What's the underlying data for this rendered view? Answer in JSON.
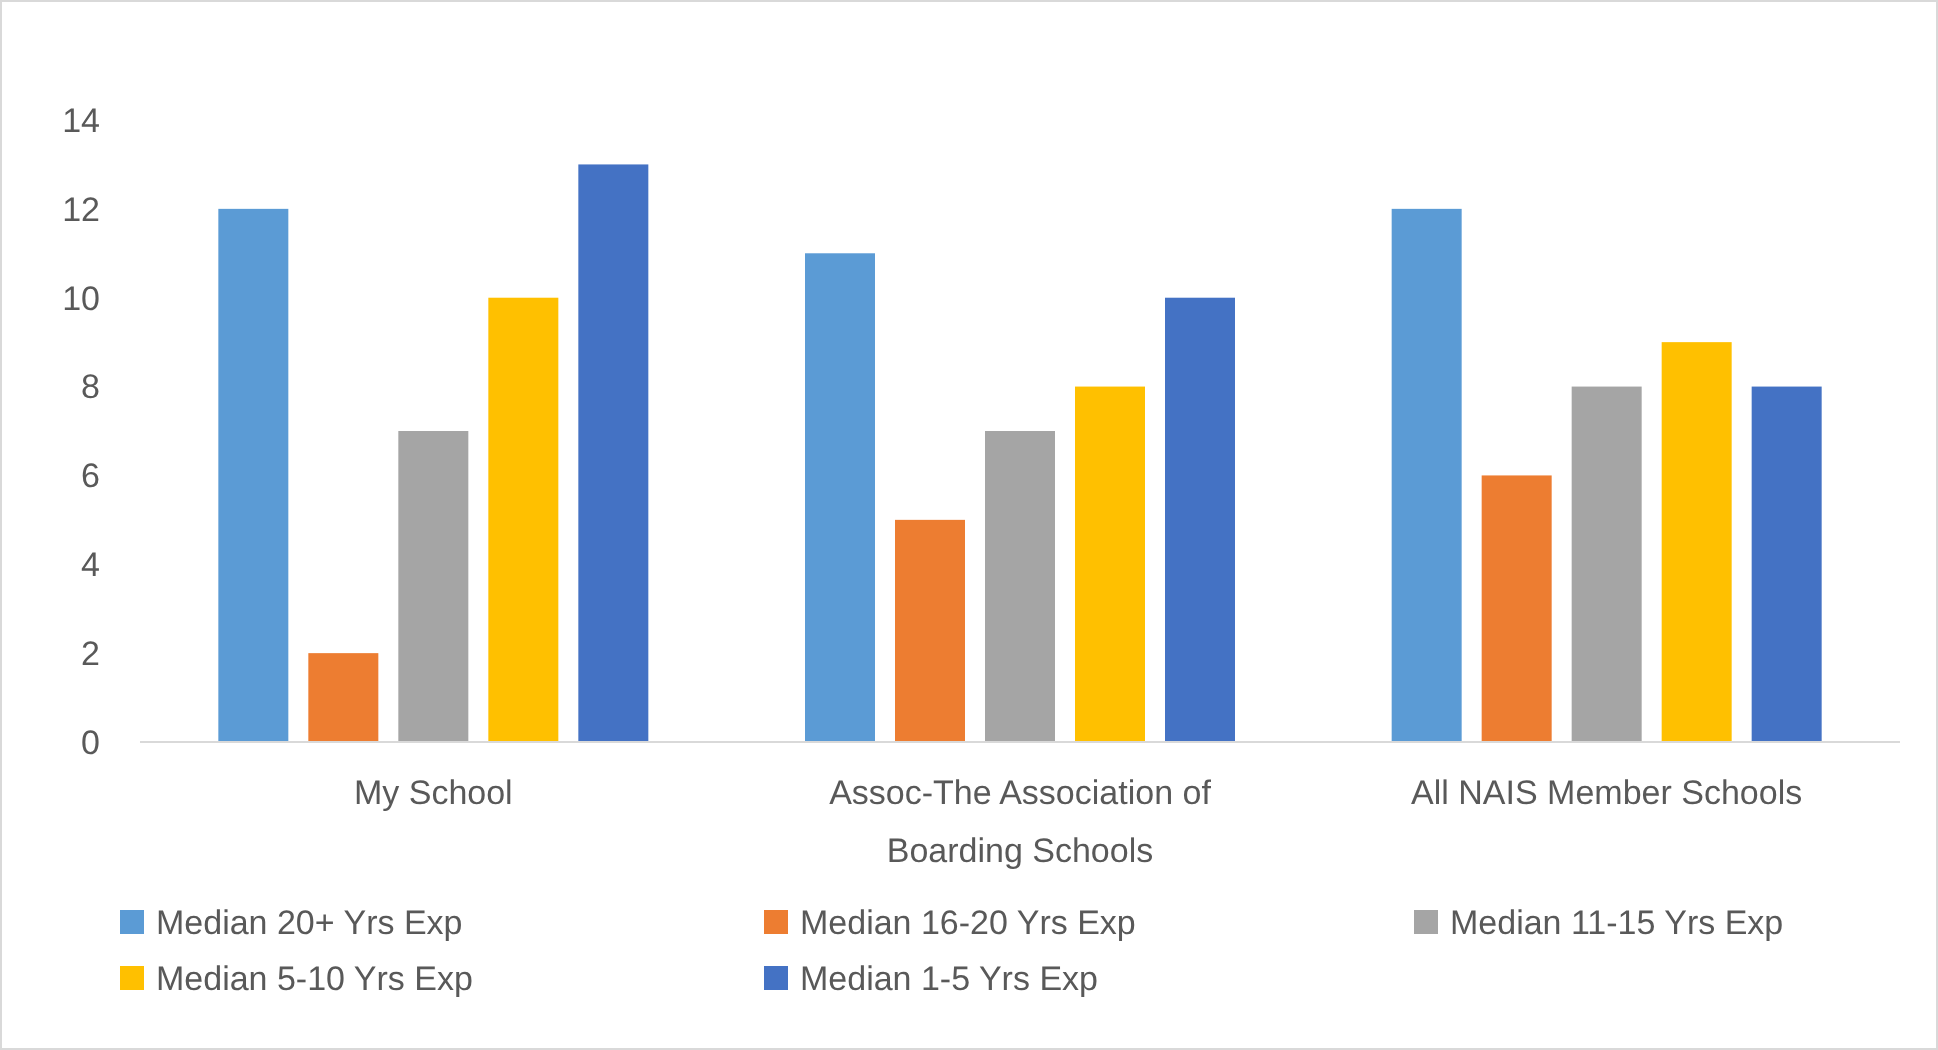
{
  "chart_data": {
    "type": "bar",
    "categories": [
      "My School",
      "Assoc-The Association of Boarding Schools",
      "All NAIS Member Schools"
    ],
    "series": [
      {
        "name": "Median 20+ Yrs Exp",
        "color": "#5b9bd5",
        "values": [
          12,
          11,
          12
        ]
      },
      {
        "name": "Median 16-20 Yrs Exp",
        "color": "#ed7d31",
        "values": [
          2,
          5,
          6
        ]
      },
      {
        "name": "Median 11-15 Yrs Exp",
        "color": "#a5a5a5",
        "values": [
          7,
          7,
          8
        ]
      },
      {
        "name": "Median 5-10 Yrs Exp",
        "color": "#ffc000",
        "values": [
          10,
          8,
          9
        ]
      },
      {
        "name": "Median 1-5 Yrs Exp",
        "color": "#4472c4",
        "values": [
          13,
          10,
          8
        ]
      }
    ],
    "ylim": [
      0,
      14
    ],
    "yticks": [
      0,
      2,
      4,
      6,
      8,
      10,
      12,
      14
    ],
    "grid": false,
    "legend": "bottom"
  }
}
